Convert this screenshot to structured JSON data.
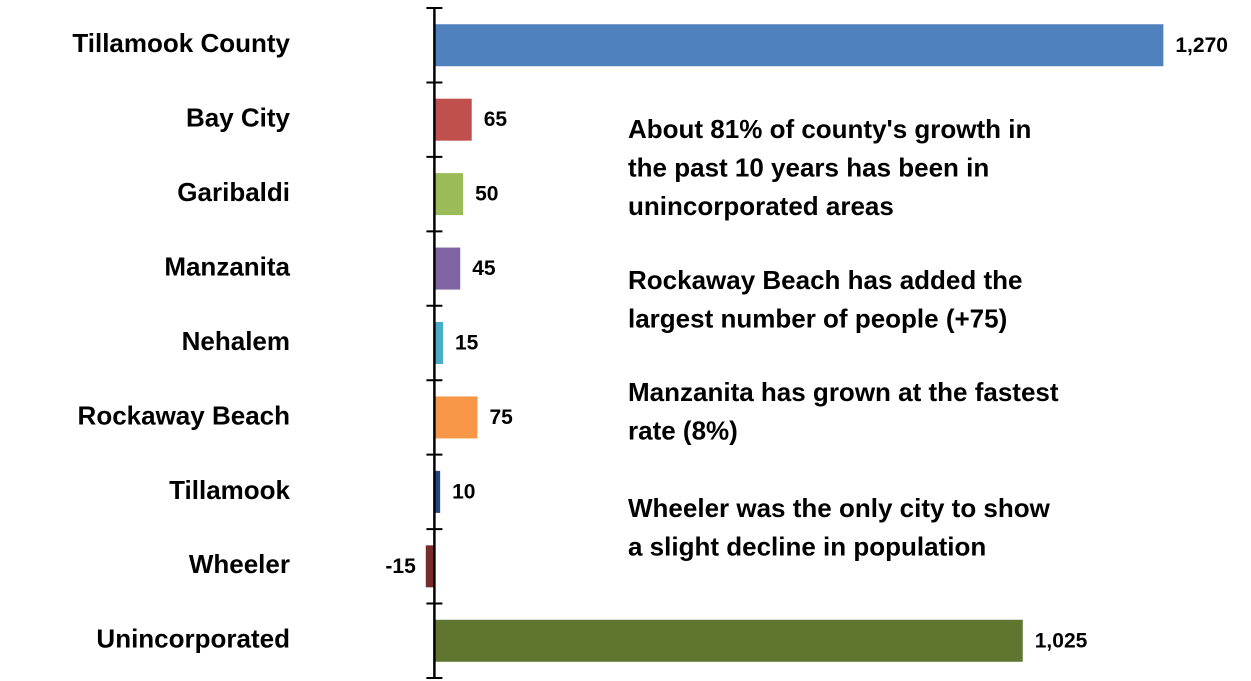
{
  "chart_data": {
    "type": "bar",
    "orientation": "horizontal",
    "categories": [
      "Tillamook County",
      "Bay City",
      "Garibaldi",
      "Manzanita",
      "Nehalem",
      "Rockaway Beach",
      "Tillamook",
      "Wheeler",
      "Unincorporated"
    ],
    "values": [
      1270,
      65,
      50,
      45,
      15,
      75,
      10,
      -15,
      1025
    ],
    "value_labels": [
      "1,270",
      "65",
      "50",
      "45",
      "15",
      "75",
      "10",
      "-15",
      "1,025"
    ],
    "colors": [
      "#4f81bd",
      "#c0504d",
      "#9bbb59",
      "#8064a2",
      "#4bacc6",
      "#f79646",
      "#1f497d",
      "#772c2a",
      "#5f7530"
    ],
    "xlim": [
      -100,
      1400
    ],
    "annotations": [
      [
        "About 81% of county's growth in",
        "the past 10 years has been in",
        "unincorporated areas"
      ],
      [
        "Rockaway Beach has added the",
        "largest number of people (+75)"
      ],
      [
        "Manzanita has grown at the fastest",
        "rate (8%)"
      ],
      [
        "Wheeler was the only city to show",
        "a slight decline in population"
      ]
    ]
  }
}
